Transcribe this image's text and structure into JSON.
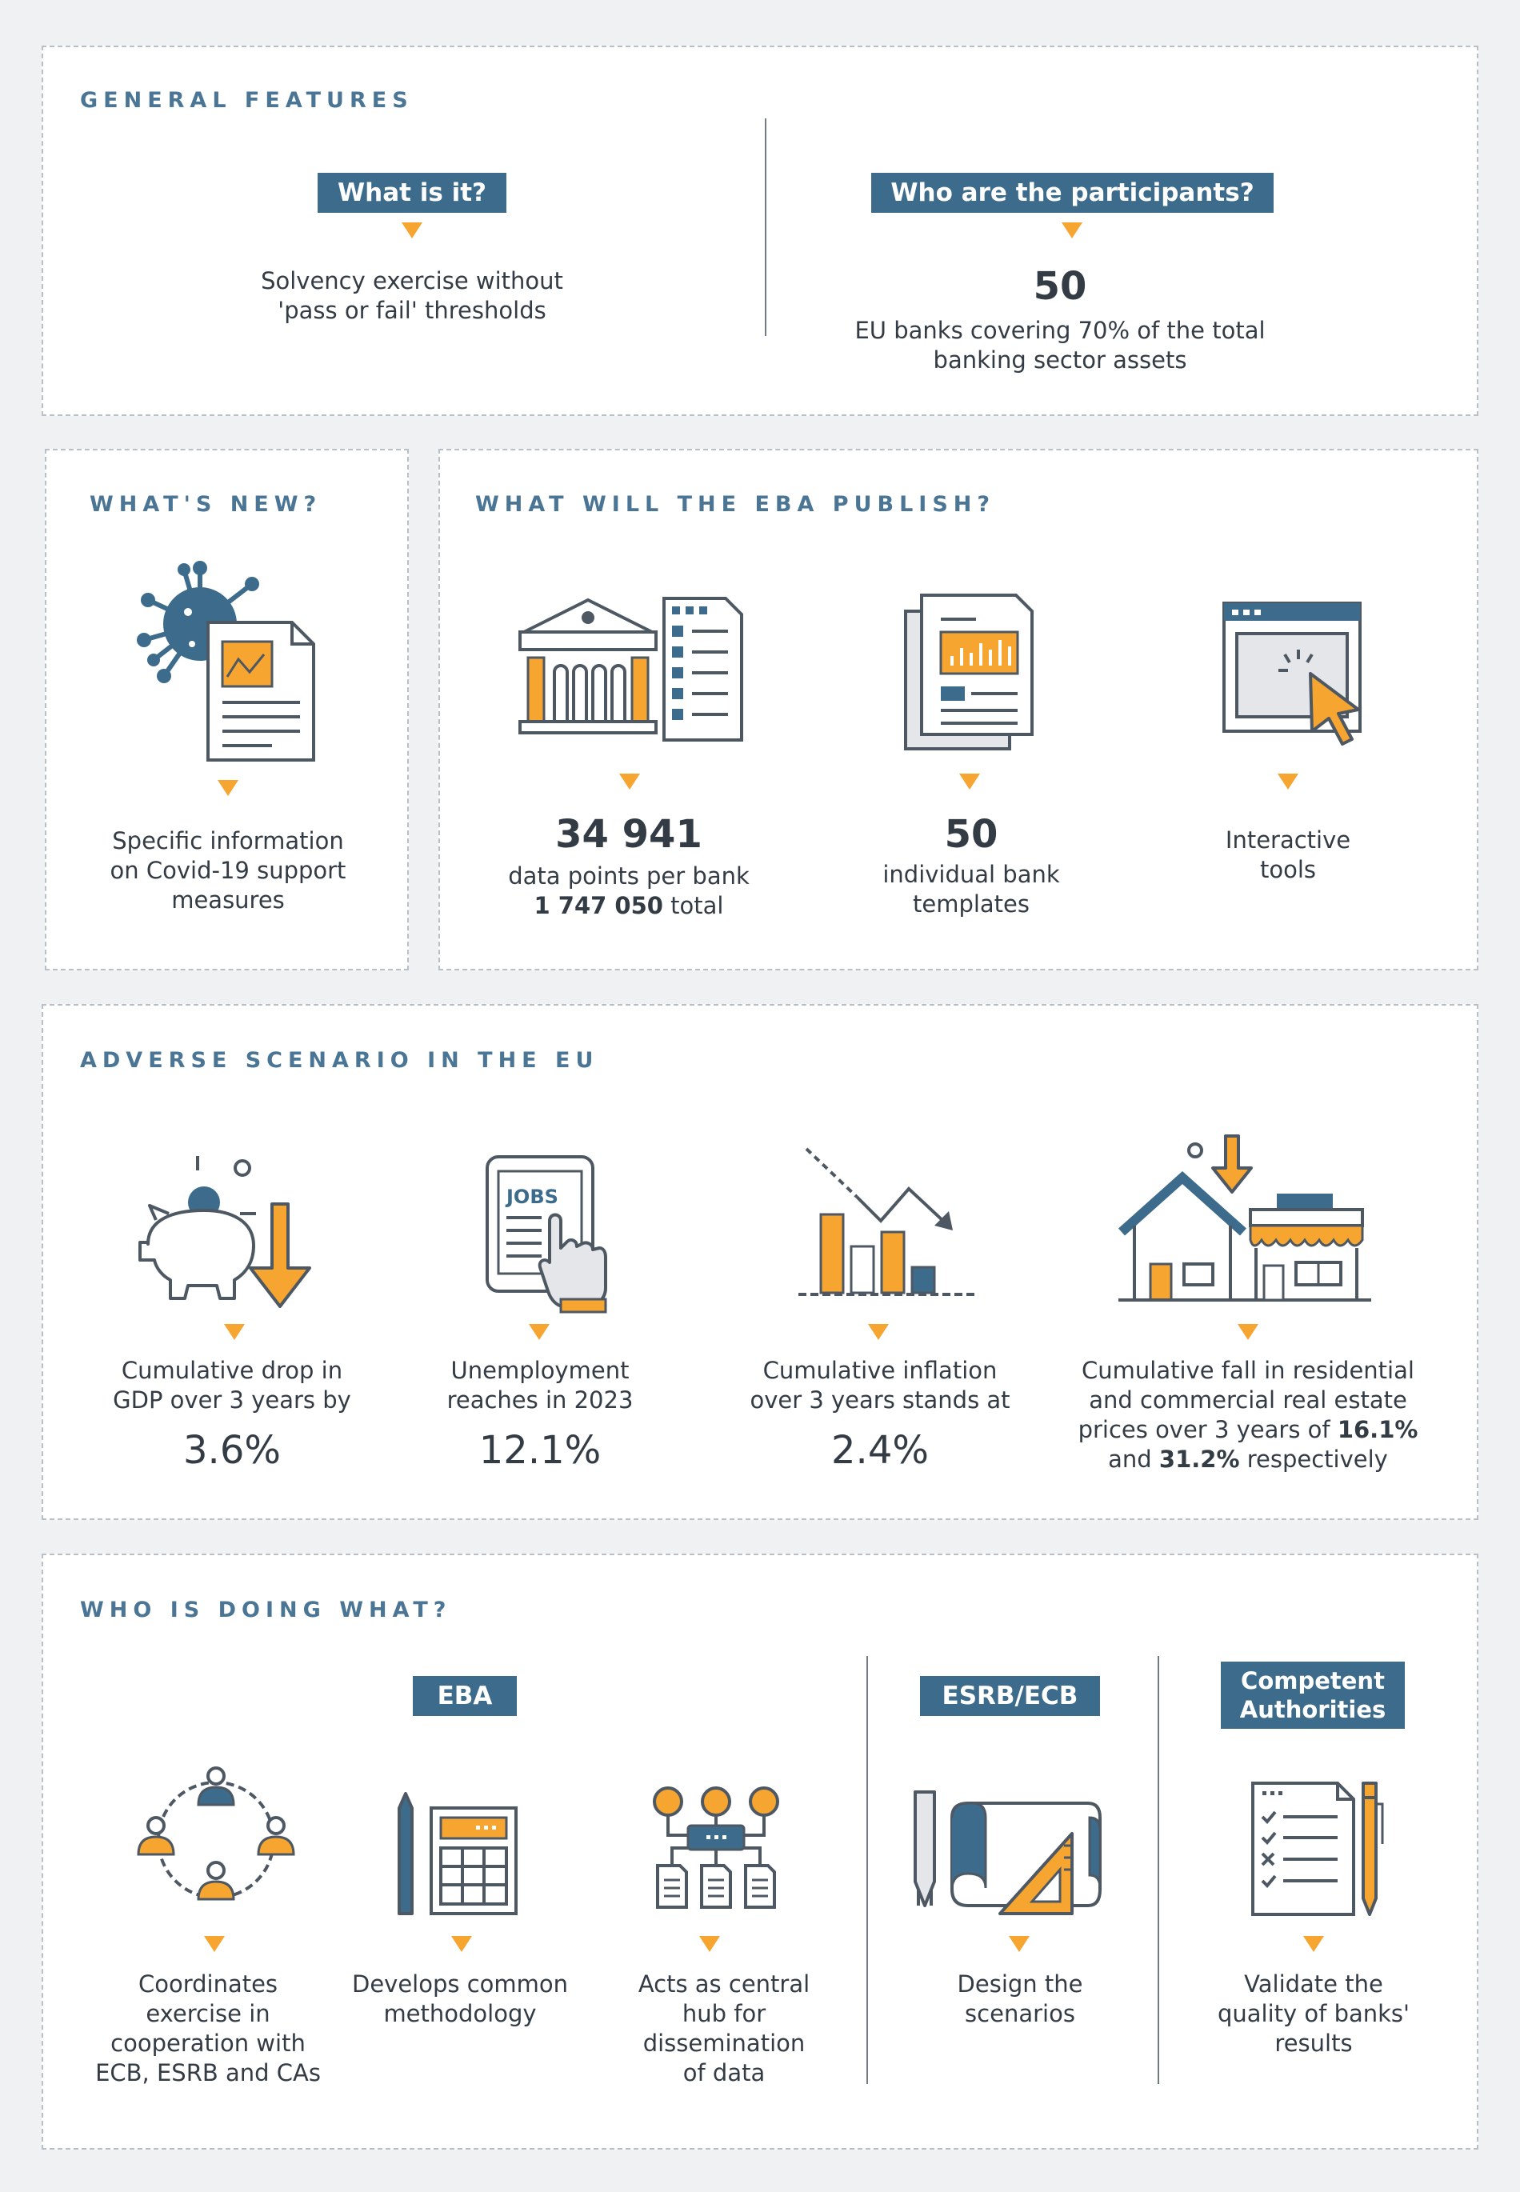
{
  "general": {
    "heading": "GENERAL FEATURES",
    "what_label": "What is it?",
    "what_text_1": "Solvency exercise without",
    "what_text_2": "'pass or fail' thresholds",
    "who_label": "Who are the participants?",
    "who_number": "50",
    "who_text_1": "EU banks covering 70% of the total",
    "who_text_2": "banking sector assets"
  },
  "whats_new": {
    "heading": "WHAT'S NEW?",
    "text_1": "Specific information",
    "text_2": "on Covid-19 support",
    "text_3": "measures"
  },
  "publish": {
    "heading": "WHAT WILL THE EBA PUBLISH?",
    "item1_number": "34 941",
    "item1_text": "data points per bank",
    "item1_total_num": "1 747 050",
    "item1_total_word": "total",
    "item2_number": "50",
    "item2_text_1": "individual bank",
    "item2_text_2": "templates",
    "item3_text_1": "Interactive",
    "item3_text_2": "tools"
  },
  "adverse": {
    "heading": "ADVERSE SCENARIO IN THE EU",
    "gdp_text_1": "Cumulative drop in",
    "gdp_text_2": "GDP over 3 years by",
    "gdp_value": "3.6%",
    "unemp_text_1": "Unemployment",
    "unemp_text_2": "reaches in 2023",
    "unemp_value": "12.1%",
    "infl_text_1": "Cumulative inflation",
    "infl_text_2": "over 3 years stands at",
    "infl_value": "2.4%",
    "re_text_1": "Cumulative fall in residential",
    "re_text_2": "and commercial real estate",
    "re_text_3": "prices over 3 years of",
    "re_value_1": "16.1%",
    "re_text_4": "and",
    "re_value_2": "31.2%",
    "re_text_5": "respectively",
    "jobs_sign": "JOBS"
  },
  "who": {
    "heading": "WHO IS DOING WHAT?",
    "eba_label": "EBA",
    "esrb_label": "ESRB/ECB",
    "ca_label_1": "Competent",
    "ca_label_2": "Authorities",
    "coord_1": "Coordinates",
    "coord_2": "exercise in",
    "coord_3": "cooperation with",
    "coord_4": "ECB, ESRB and CAs",
    "method_1": "Develops common",
    "method_2": "methodology",
    "hub_1": "Acts as central",
    "hub_2": "hub for",
    "hub_3": "dissemination",
    "hub_4": "of data",
    "design_1": "Design the",
    "design_2": "scenarios",
    "validate_1": "Validate the",
    "validate_2": "quality of banks'",
    "validate_3": "results"
  },
  "colors": {
    "accent": "#f6a531",
    "navy": "#3d6b8c",
    "heading": "#4a7594",
    "outline": "#4d5863"
  }
}
